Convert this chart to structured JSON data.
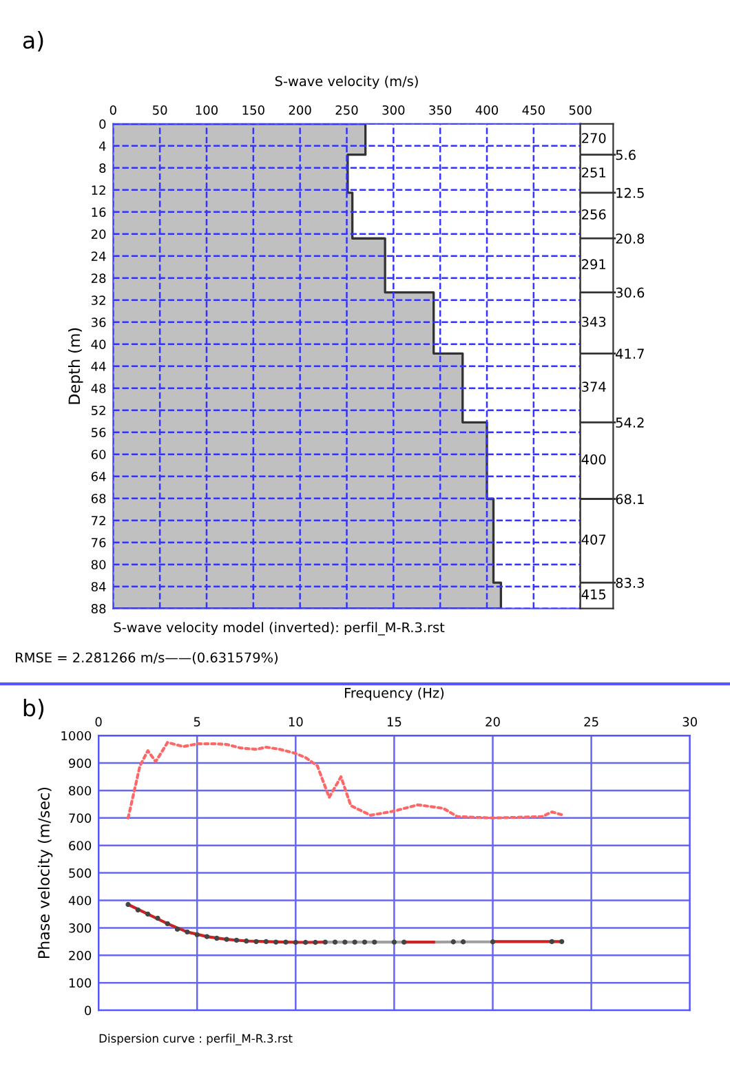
{
  "chart_data": [
    {
      "type": "area",
      "title": "a)",
      "xlabel": "S-wave velocity (m/s)",
      "ylabel": "Depth (m)",
      "series": [
        {
          "color": "#c0c0c0",
          "x": [
            0,
            270,
            270,
            251,
            251,
            256,
            256,
            291,
            291,
            343,
            343,
            374,
            374,
            400,
            400,
            407,
            407,
            415,
            415,
            0
          ],
          "values": [
            0,
            0,
            5.6,
            5.6,
            12.5,
            12.5,
            20.8,
            20.8,
            30.6,
            30.6,
            41.7,
            41.7,
            54.2,
            54.2,
            68.1,
            68.1,
            83.3,
            83.3,
            88,
            88
          ]
        }
      ],
      "xlim": [
        0,
        500
      ],
      "xticks": [
        0,
        50,
        100,
        150,
        200,
        250,
        300,
        350,
        400,
        450,
        500
      ],
      "ylim": [
        88,
        0
      ],
      "yticks": [
        0,
        4,
        8,
        12,
        16,
        20,
        24,
        28,
        32,
        36,
        40,
        44,
        48,
        52,
        56,
        60,
        64,
        68,
        72,
        76,
        80,
        84,
        88
      ],
      "y2lim": [
        88,
        0
      ],
      "y2ticks": [
        5.6,
        12.5,
        20.8,
        30.6,
        41.7,
        54.2,
        68.1,
        83.3
      ],
      "grid": true,
      "annotations": [
        "270",
        "251",
        "256",
        "291",
        "343",
        "374",
        "400",
        "407",
        "415",
        "S-wave velocity model (inverted): perfil_M-R.3.rst",
        "RMSE = 2.281266 m/s——(0.631579%)"
      ]
    },
    {
      "type": "line",
      "title": "b)",
      "xlabel": "Frequency (Hz)",
      "ylabel": "Phase velocity (m/sec)",
      "series": [
        {
          "color": "#ff6666",
          "line_style": "dotted",
          "marker": "none",
          "x": [
            1.5,
            2.1,
            2.5,
            2.9,
            3.5,
            4.3,
            5,
            6,
            6.5,
            7.2,
            8,
            8.5,
            9.2,
            10,
            10.5,
            11.1,
            11.7,
            12.3,
            12.8,
            13.8,
            15,
            16.2,
            17.5,
            18.2,
            20,
            22.5,
            23,
            23.5
          ],
          "values": [
            700,
            890,
            945,
            905,
            975,
            960,
            970,
            970,
            968,
            955,
            950,
            958,
            950,
            935,
            920,
            890,
            775,
            850,
            745,
            710,
            725,
            748,
            735,
            705,
            700,
            705,
            722,
            712
          ]
        },
        {
          "type": "scatter",
          "color": "#444444",
          "marker": "circle",
          "x": [
            1.5,
            2,
            2.5,
            3,
            3.5,
            4,
            4.5,
            5,
            5.5,
            6,
            6.5,
            7,
            7.5,
            8,
            8.5,
            9,
            9.5,
            10,
            10.5,
            11,
            11.5,
            12,
            12.5,
            13,
            13.5,
            14,
            15,
            15.5,
            18,
            18.5,
            20,
            23,
            23.5
          ],
          "values": [
            385,
            365,
            350,
            335,
            315,
            295,
            285,
            275,
            268,
            262,
            258,
            255,
            252,
            250,
            250,
            248,
            248,
            247,
            247,
            247,
            248,
            248,
            248,
            248,
            248,
            248,
            248,
            248,
            249,
            249,
            249,
            250,
            250
          ]
        },
        {
          "color": "#a0a0a0",
          "line_style": "solid",
          "marker": "none",
          "x": [
            11.5,
            13.5,
            15.5,
            16,
            17,
            18.5,
            20
          ],
          "values": [
            248,
            248,
            248,
            null,
            248,
            249,
            249
          ]
        },
        {
          "color": "#cc2222",
          "line_style": "solid",
          "marker": "none",
          "x": [
            1.5,
            2.5,
            3.5,
            4.5,
            5.5,
            6.5,
            7.5,
            8.5,
            9.5,
            10.5,
            11.5,
            13.5,
            15.5,
            16,
            17,
            18.5,
            20,
            21,
            22,
            23,
            23.5
          ],
          "values": [
            385,
            350,
            315,
            285,
            268,
            258,
            252,
            250,
            248,
            247,
            248,
            null,
            248,
            248,
            248,
            null,
            250,
            250,
            250,
            250,
            250
          ]
        }
      ],
      "xlim": [
        0,
        30
      ],
      "xticks": [
        0,
        5,
        10,
        15,
        20,
        25,
        30
      ],
      "ylim": [
        0,
        1000
      ],
      "yticks": [
        0,
        100,
        200,
        300,
        400,
        500,
        600,
        700,
        800,
        900,
        1000
      ],
      "grid": true,
      "annotations": [
        "Dispersion curve : perfil_M-R.3.rst"
      ]
    }
  ]
}
